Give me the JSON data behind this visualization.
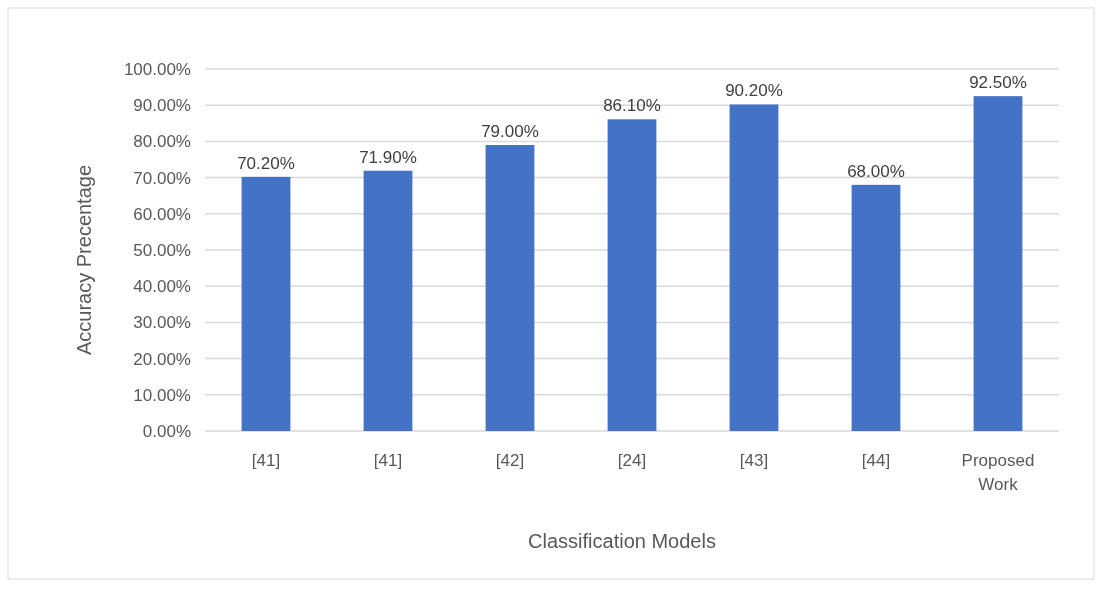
{
  "chart_data": {
    "type": "bar",
    "xlabel": "Classification Models",
    "ylabel": "Accuracy Precentage",
    "categories": [
      "[41]",
      "[41]",
      "[42]",
      "[24]",
      "[43]",
      "[44]",
      "Proposed Work"
    ],
    "values": [
      70.2,
      71.9,
      79.0,
      86.1,
      90.2,
      68.0,
      92.5
    ],
    "value_labels": [
      "70.20%",
      "71.90%",
      "79.00%",
      "86.10%",
      "90.20%",
      "68.00%",
      "92.50%"
    ],
    "color": "#4472c4",
    "ylim": [
      0,
      100
    ],
    "yticks": [
      {
        "value": 0,
        "label": "0.00%"
      },
      {
        "value": 10,
        "label": "10.00%"
      },
      {
        "value": 20,
        "label": "20.00%"
      },
      {
        "value": 30,
        "label": "30.00%"
      },
      {
        "value": 40,
        "label": "40.00%"
      },
      {
        "value": 50,
        "label": "50.00%"
      },
      {
        "value": 60,
        "label": "60.00%"
      },
      {
        "value": 70,
        "label": "70.00%"
      },
      {
        "value": 80,
        "label": "80.00%"
      },
      {
        "value": 90,
        "label": "90.00%"
      },
      {
        "value": 100,
        "label": "100.00%"
      }
    ],
    "grid": "y"
  }
}
